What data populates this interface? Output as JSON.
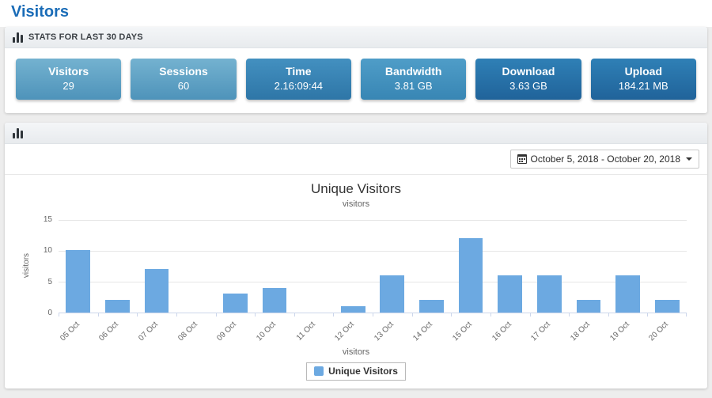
{
  "page": {
    "title": "Visitors"
  },
  "colors": {
    "accent_blue": "#1a6cb7",
    "page_background": "#ededed",
    "axis_line": "#ccd6eb",
    "grid_line": "#e6e6e6",
    "bar_color": "#6ca9e1"
  },
  "icons": {
    "stats_header_icon": "bar-chart-icon",
    "chart_header_icon": "bar-chart-icon",
    "date_picker_icon": "calendar-icon",
    "date_picker_caret": "caret-down-icon"
  },
  "stats_panel": {
    "header": "STATS FOR LAST 30 DAYS",
    "cards": [
      {
        "label": "Visitors",
        "value": "29",
        "gradient_top": "#74b2d0",
        "gradient_bottom": "#4e93ba"
      },
      {
        "label": "Sessions",
        "value": "60",
        "gradient_top": "#74b2d0",
        "gradient_bottom": "#4e93ba"
      },
      {
        "label": "Time",
        "value": "2.16:09:44",
        "gradient_top": "#4390c0",
        "gradient_bottom": "#2e76a7"
      },
      {
        "label": "Bandwidth",
        "value": "3.81 GB",
        "gradient_top": "#4f9dc8",
        "gradient_bottom": "#3886b4"
      },
      {
        "label": "Download",
        "value": "3.63 GB",
        "gradient_top": "#2f80b6",
        "gradient_bottom": "#20639a"
      },
      {
        "label": "Upload",
        "value": "184.21 MB",
        "gradient_top": "#2f80b6",
        "gradient_bottom": "#20639a"
      }
    ]
  },
  "chart_panel": {
    "date_range": "October 5, 2018 - October 20, 2018"
  },
  "chart_data": {
    "type": "bar",
    "title": "Unique Visitors",
    "subtitle": "visitors",
    "xlabel": "visitors",
    "ylabel": "visitors",
    "categories": [
      "05 Oct",
      "06 Oct",
      "07 Oct",
      "08 Oct",
      "09 Oct",
      "10 Oct",
      "11 Oct",
      "12 Oct",
      "13 Oct",
      "14 Oct",
      "15 Oct",
      "16 Oct",
      "17 Oct",
      "18 Oct",
      "19 Oct",
      "20 Oct"
    ],
    "values": [
      10,
      2,
      7,
      0,
      3,
      4,
      0,
      1,
      6,
      2,
      12,
      6,
      6,
      2,
      6,
      2
    ],
    "yticks": [
      0,
      5,
      10,
      15
    ],
    "ylim": [
      0,
      15
    ],
    "grid": true,
    "legend": "Unique Visitors",
    "legend_position": "bottom-center",
    "bar_color": "#6ca9e1"
  }
}
